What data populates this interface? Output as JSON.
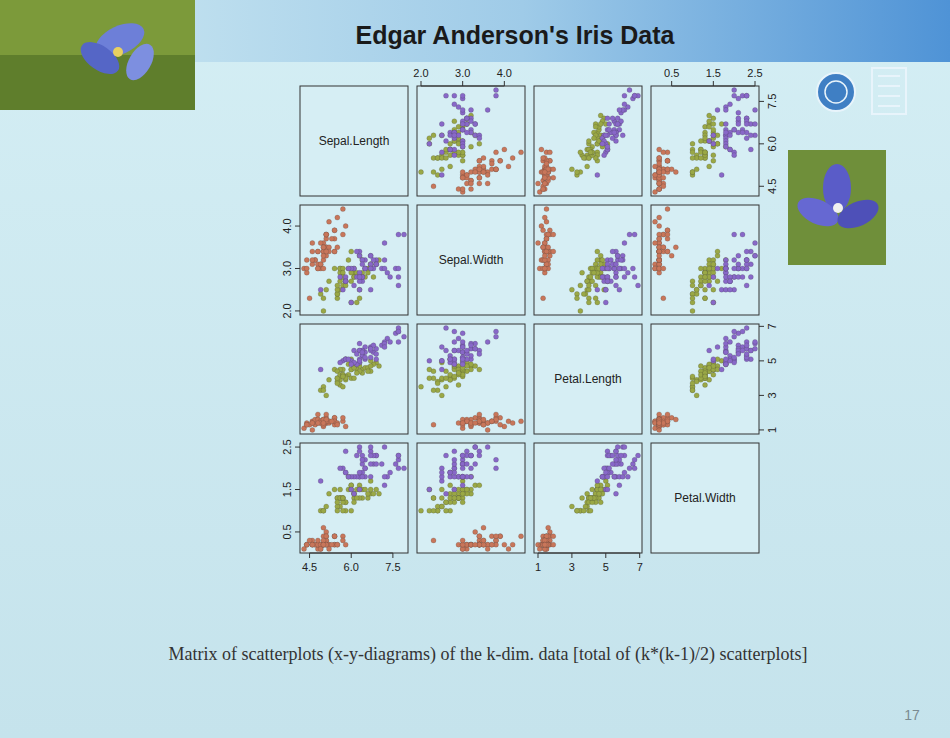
{
  "chart_data": {
    "type": "scatter_matrix",
    "title": "Edgar Anderson's Iris Data",
    "caption": "Matrix of scatterplots (x-y-diagrams) of the k-dim. data [total of (k*(k-1)/2) scatterplots]",
    "page": 17,
    "variables": [
      {
        "name": "Sepal.Length",
        "lim": [
          4.156,
          8.044
        ],
        "ticks": [
          4.5,
          {
            "value": 6,
            "label": "6.0"
          },
          7.5
        ]
      },
      {
        "name": "Sepal.Width",
        "lim": [
          1.904,
          4.496
        ],
        "ticks": [
          {
            "value": 2,
            "label": "2.0"
          },
          {
            "value": 3,
            "label": "3.0"
          },
          {
            "value": 4,
            "label": "4.0"
          }
        ]
      },
      {
        "name": "Petal.Length",
        "lim": [
          0.764,
          7.136
        ],
        "ticks": [
          1,
          3,
          5,
          7
        ]
      },
      {
        "name": "Petal.Width",
        "lim": [
          0.004,
          2.596
        ],
        "ticks": [
          0.5,
          1.5,
          2.5
        ]
      }
    ],
    "series": [
      {
        "color": "#c8765a",
        "marker": "circle",
        "values": [
          [
            5.1,
            3.5,
            1.4,
            0.2
          ],
          [
            4.9,
            3.0,
            1.4,
            0.2
          ],
          [
            4.7,
            3.2,
            1.3,
            0.2
          ],
          [
            4.6,
            3.1,
            1.5,
            0.2
          ],
          [
            5.0,
            3.6,
            1.4,
            0.2
          ],
          [
            5.4,
            3.9,
            1.7,
            0.4
          ],
          [
            4.6,
            3.4,
            1.4,
            0.3
          ],
          [
            5.0,
            3.4,
            1.5,
            0.2
          ],
          [
            4.4,
            2.9,
            1.4,
            0.2
          ],
          [
            4.9,
            3.1,
            1.5,
            0.1
          ],
          [
            5.4,
            3.7,
            1.5,
            0.2
          ],
          [
            4.8,
            3.4,
            1.6,
            0.2
          ],
          [
            4.8,
            3.0,
            1.4,
            0.1
          ],
          [
            4.3,
            3.0,
            1.1,
            0.1
          ],
          [
            5.8,
            4.0,
            1.2,
            0.2
          ],
          [
            5.7,
            4.4,
            1.5,
            0.4
          ],
          [
            5.4,
            3.9,
            1.3,
            0.4
          ],
          [
            5.1,
            3.5,
            1.4,
            0.3
          ],
          [
            5.7,
            3.8,
            1.7,
            0.3
          ],
          [
            5.1,
            3.8,
            1.5,
            0.3
          ],
          [
            5.4,
            3.4,
            1.7,
            0.2
          ],
          [
            5.1,
            3.7,
            1.5,
            0.4
          ],
          [
            4.6,
            3.6,
            1.0,
            0.2
          ],
          [
            5.1,
            3.3,
            1.7,
            0.5
          ],
          [
            4.8,
            3.4,
            1.9,
            0.2
          ],
          [
            5.0,
            3.0,
            1.6,
            0.2
          ],
          [
            5.0,
            3.4,
            1.6,
            0.4
          ],
          [
            5.2,
            3.5,
            1.5,
            0.2
          ],
          [
            5.2,
            3.4,
            1.4,
            0.2
          ],
          [
            4.7,
            3.2,
            1.6,
            0.2
          ],
          [
            4.8,
            3.1,
            1.6,
            0.2
          ],
          [
            5.4,
            3.4,
            1.5,
            0.4
          ],
          [
            5.2,
            4.1,
            1.5,
            0.1
          ],
          [
            5.5,
            4.2,
            1.4,
            0.2
          ],
          [
            4.9,
            3.1,
            1.5,
            0.2
          ],
          [
            5.0,
            3.2,
            1.2,
            0.2
          ],
          [
            5.5,
            3.5,
            1.3,
            0.2
          ],
          [
            4.9,
            3.6,
            1.4,
            0.1
          ],
          [
            4.4,
            3.0,
            1.3,
            0.2
          ],
          [
            5.1,
            3.4,
            1.5,
            0.2
          ],
          [
            5.0,
            3.5,
            1.3,
            0.3
          ],
          [
            4.5,
            2.3,
            1.3,
            0.3
          ],
          [
            4.4,
            3.2,
            1.3,
            0.2
          ],
          [
            5.0,
            3.5,
            1.6,
            0.6
          ],
          [
            5.1,
            3.8,
            1.9,
            0.4
          ],
          [
            4.8,
            3.0,
            1.4,
            0.3
          ],
          [
            5.1,
            3.8,
            1.6,
            0.2
          ],
          [
            4.6,
            3.2,
            1.4,
            0.2
          ],
          [
            5.3,
            3.7,
            1.5,
            0.2
          ],
          [
            5.0,
            3.3,
            1.4,
            0.2
          ]
        ]
      },
      {
        "color": "#9aa846",
        "marker": "circle",
        "values": [
          [
            7.0,
            3.2,
            4.7,
            1.4
          ],
          [
            6.4,
            3.2,
            4.5,
            1.5
          ],
          [
            6.9,
            3.1,
            4.9,
            1.5
          ],
          [
            5.5,
            2.3,
            4.0,
            1.3
          ],
          [
            6.5,
            2.8,
            4.6,
            1.5
          ],
          [
            5.7,
            2.8,
            4.5,
            1.3
          ],
          [
            6.3,
            3.3,
            4.7,
            1.6
          ],
          [
            4.9,
            2.4,
            3.3,
            1.0
          ],
          [
            6.6,
            2.9,
            4.6,
            1.3
          ],
          [
            5.2,
            2.7,
            3.9,
            1.4
          ],
          [
            5.0,
            2.0,
            3.5,
            1.0
          ],
          [
            5.9,
            3.0,
            4.2,
            1.5
          ],
          [
            6.0,
            2.2,
            4.0,
            1.0
          ],
          [
            6.1,
            2.9,
            4.7,
            1.4
          ],
          [
            5.6,
            2.9,
            3.6,
            1.3
          ],
          [
            6.7,
            3.1,
            4.4,
            1.4
          ],
          [
            5.6,
            3.0,
            4.5,
            1.5
          ],
          [
            5.8,
            2.7,
            4.1,
            1.0
          ],
          [
            6.2,
            2.2,
            4.5,
            1.5
          ],
          [
            5.6,
            2.5,
            3.9,
            1.1
          ],
          [
            5.9,
            3.2,
            4.8,
            1.8
          ],
          [
            6.1,
            2.8,
            4.0,
            1.3
          ],
          [
            6.3,
            2.5,
            4.9,
            1.5
          ],
          [
            6.1,
            2.8,
            4.7,
            1.2
          ],
          [
            6.4,
            2.9,
            4.3,
            1.3
          ],
          [
            6.6,
            3.0,
            4.4,
            1.4
          ],
          [
            6.8,
            2.8,
            4.8,
            1.4
          ],
          [
            6.7,
            3.0,
            5.0,
            1.7
          ],
          [
            6.0,
            2.9,
            4.5,
            1.5
          ],
          [
            5.7,
            2.6,
            3.5,
            1.0
          ],
          [
            5.5,
            2.4,
            3.8,
            1.1
          ],
          [
            5.5,
            2.4,
            3.7,
            1.0
          ],
          [
            5.8,
            2.7,
            3.9,
            1.2
          ],
          [
            6.0,
            2.7,
            5.1,
            1.6
          ],
          [
            5.4,
            3.0,
            4.5,
            1.5
          ],
          [
            6.0,
            3.4,
            4.5,
            1.6
          ],
          [
            6.7,
            3.1,
            4.7,
            1.5
          ],
          [
            6.3,
            2.3,
            4.4,
            1.3
          ],
          [
            5.6,
            3.0,
            4.1,
            1.3
          ],
          [
            5.5,
            2.5,
            4.0,
            1.3
          ],
          [
            5.5,
            2.6,
            4.4,
            1.2
          ],
          [
            6.1,
            3.0,
            4.6,
            1.4
          ],
          [
            5.8,
            2.6,
            4.0,
            1.2
          ],
          [
            5.0,
            2.3,
            3.3,
            1.0
          ],
          [
            5.6,
            2.7,
            4.2,
            1.3
          ],
          [
            5.7,
            3.0,
            4.2,
            1.2
          ],
          [
            5.7,
            2.9,
            4.2,
            1.3
          ],
          [
            6.2,
            2.9,
            4.3,
            1.3
          ],
          [
            5.1,
            2.5,
            3.0,
            1.1
          ],
          [
            5.7,
            2.8,
            4.1,
            1.3
          ]
        ]
      },
      {
        "color": "#8868c8",
        "marker": "circle",
        "values": [
          [
            6.3,
            3.3,
            6.0,
            2.5
          ],
          [
            5.8,
            2.7,
            5.1,
            1.9
          ],
          [
            7.1,
            3.0,
            5.9,
            2.1
          ],
          [
            6.3,
            2.9,
            5.6,
            1.8
          ],
          [
            6.5,
            3.0,
            5.8,
            2.2
          ],
          [
            7.6,
            3.0,
            6.6,
            2.1
          ],
          [
            4.9,
            2.5,
            4.5,
            1.7
          ],
          [
            7.3,
            2.9,
            6.3,
            1.8
          ],
          [
            6.7,
            2.5,
            5.8,
            1.8
          ],
          [
            7.2,
            3.6,
            6.1,
            2.5
          ],
          [
            6.5,
            3.2,
            5.1,
            2.0
          ],
          [
            6.4,
            2.7,
            5.3,
            1.9
          ],
          [
            6.8,
            3.0,
            5.5,
            2.1
          ],
          [
            5.7,
            2.5,
            5.0,
            2.0
          ],
          [
            5.8,
            2.8,
            5.1,
            2.4
          ],
          [
            6.4,
            3.2,
            5.3,
            2.3
          ],
          [
            6.5,
            3.0,
            5.5,
            1.8
          ],
          [
            7.7,
            3.8,
            6.7,
            2.2
          ],
          [
            7.7,
            2.6,
            6.9,
            2.3
          ],
          [
            6.0,
            2.2,
            5.0,
            1.5
          ],
          [
            6.9,
            3.2,
            5.7,
            2.3
          ],
          [
            5.6,
            2.8,
            4.9,
            2.0
          ],
          [
            7.7,
            2.8,
            6.7,
            2.0
          ],
          [
            6.3,
            2.7,
            4.9,
            1.8
          ],
          [
            6.7,
            3.3,
            5.7,
            2.1
          ],
          [
            7.2,
            3.2,
            6.0,
            1.8
          ],
          [
            6.2,
            2.8,
            4.8,
            1.8
          ],
          [
            6.1,
            3.0,
            4.9,
            1.8
          ],
          [
            6.4,
            2.8,
            5.6,
            2.1
          ],
          [
            7.2,
            3.0,
            5.8,
            1.6
          ],
          [
            7.4,
            2.8,
            6.1,
            1.9
          ],
          [
            7.9,
            3.8,
            6.4,
            2.0
          ],
          [
            6.4,
            2.8,
            5.6,
            2.2
          ],
          [
            6.3,
            2.8,
            5.1,
            1.5
          ],
          [
            6.1,
            2.6,
            5.6,
            1.4
          ],
          [
            7.7,
            3.0,
            6.1,
            2.3
          ],
          [
            6.3,
            3.4,
            5.6,
            2.4
          ],
          [
            6.4,
            3.1,
            5.5,
            1.8
          ],
          [
            6.0,
            3.0,
            4.8,
            1.8
          ],
          [
            6.9,
            3.1,
            5.4,
            2.1
          ],
          [
            6.7,
            3.1,
            5.6,
            2.4
          ],
          [
            6.9,
            3.1,
            5.1,
            2.3
          ],
          [
            5.8,
            2.7,
            5.1,
            1.9
          ],
          [
            6.8,
            3.2,
            5.9,
            2.3
          ],
          [
            6.7,
            3.3,
            5.7,
            2.5
          ],
          [
            6.7,
            3.0,
            5.2,
            2.3
          ],
          [
            6.3,
            2.5,
            5.0,
            1.9
          ],
          [
            6.5,
            3.0,
            5.2,
            2.0
          ],
          [
            6.2,
            3.4,
            5.4,
            2.3
          ],
          [
            5.9,
            3.0,
            5.1,
            1.8
          ]
        ]
      }
    ]
  }
}
